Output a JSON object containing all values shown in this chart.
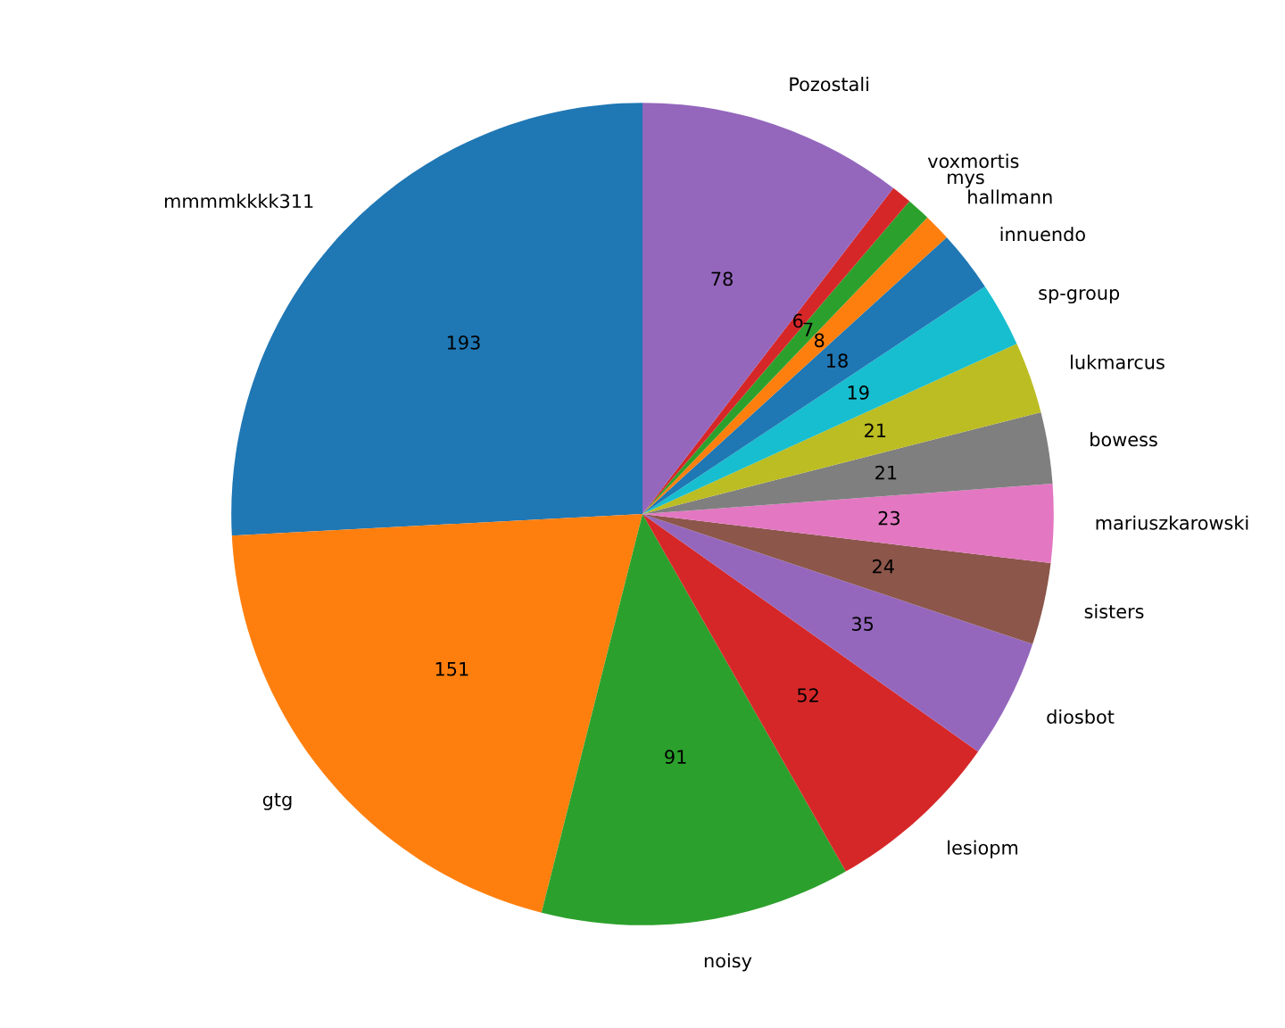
{
  "chart_data": {
    "type": "pie",
    "categories": [
      "mmmmkkkk311",
      "gtg",
      "noisy",
      "lesiopm",
      "diosbot",
      "sisters",
      "mariuszkarowski",
      "bowess",
      "lukmarcus",
      "sp-group",
      "innuendo",
      "hallmann",
      "mys",
      "voxmortis",
      "Pozostali"
    ],
    "values": [
      193,
      151,
      91,
      52,
      35,
      24,
      23,
      21,
      21,
      19,
      18,
      8,
      7,
      6,
      78
    ],
    "colors": [
      "#1f77b4",
      "#ff7f0e",
      "#2ca02c",
      "#d62728",
      "#9467bd",
      "#8c564b",
      "#e377c2",
      "#7f7f7f",
      "#bcbd22",
      "#17becf",
      "#1f77b4",
      "#ff7f0e",
      "#2ca02c",
      "#d62728",
      "#9467bd"
    ],
    "data_labels": true
  }
}
